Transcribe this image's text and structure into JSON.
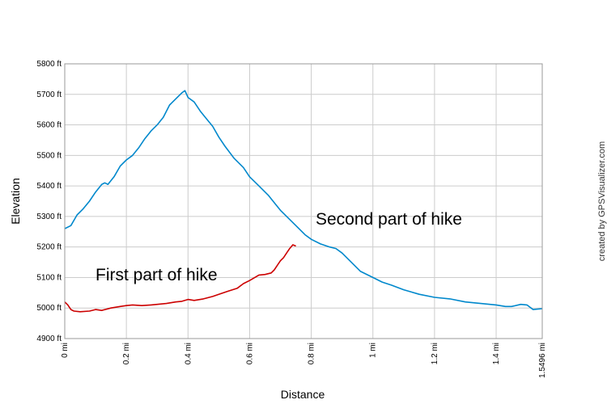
{
  "chart_data": {
    "type": "line",
    "xlabel": "Distance",
    "ylabel": "Elevation",
    "xlim": [
      0,
      1.5496
    ],
    "ylim": [
      4900,
      5800
    ],
    "x_ticks": [
      "0 mi",
      "0.2 mi",
      "0.4 mi",
      "0.6 mi",
      "0.8 mi",
      "1 mi",
      "1.2 mi",
      "1.4 mi",
      "1.5496 mi"
    ],
    "y_ticks": [
      "4900 ft",
      "5000 ft",
      "5100 ft",
      "5200 ft",
      "5300 ft",
      "5400 ft",
      "5500 ft",
      "5600 ft",
      "5700 ft",
      "5800 ft"
    ],
    "grid": true,
    "series": [
      {
        "color": "#cc0000",
        "x": [
          0,
          0.01,
          0.02,
          0.03,
          0.05,
          0.08,
          0.1,
          0.12,
          0.15,
          0.18,
          0.2,
          0.22,
          0.25,
          0.28,
          0.3,
          0.33,
          0.36,
          0.38,
          0.4,
          0.42,
          0.45,
          0.48,
          0.5,
          0.53,
          0.56,
          0.58,
          0.6,
          0.62,
          0.63,
          0.65,
          0.67,
          0.68,
          0.69,
          0.7,
          0.71,
          0.72,
          0.73,
          0.74,
          0.75
        ],
        "y": [
          5020,
          5010,
          4995,
          4990,
          4988,
          4990,
          4995,
          4992,
          5000,
          5005,
          5008,
          5010,
          5008,
          5010,
          5012,
          5015,
          5020,
          5022,
          5028,
          5025,
          5030,
          5038,
          5045,
          5055,
          5065,
          5080,
          5090,
          5102,
          5108,
          5110,
          5115,
          5125,
          5140,
          5155,
          5165,
          5180,
          5195,
          5207,
          5203
        ]
      },
      {
        "color": "#0088cc",
        "x": [
          0,
          0.02,
          0.04,
          0.06,
          0.08,
          0.1,
          0.12,
          0.13,
          0.14,
          0.16,
          0.18,
          0.2,
          0.22,
          0.24,
          0.26,
          0.28,
          0.3,
          0.32,
          0.34,
          0.36,
          0.38,
          0.39,
          0.4,
          0.42,
          0.44,
          0.46,
          0.48,
          0.5,
          0.52,
          0.55,
          0.58,
          0.6,
          0.63,
          0.66,
          0.7,
          0.74,
          0.78,
          0.8,
          0.83,
          0.86,
          0.88,
          0.9,
          0.93,
          0.96,
          1.0,
          1.03,
          1.06,
          1.1,
          1.15,
          1.2,
          1.25,
          1.3,
          1.35,
          1.4,
          1.43,
          1.45,
          1.48,
          1.5,
          1.52,
          1.5496
        ],
        "y": [
          5260,
          5270,
          5305,
          5325,
          5350,
          5380,
          5405,
          5410,
          5405,
          5430,
          5465,
          5485,
          5500,
          5525,
          5555,
          5580,
          5600,
          5625,
          5665,
          5685,
          5705,
          5712,
          5690,
          5675,
          5645,
          5620,
          5595,
          5560,
          5530,
          5490,
          5460,
          5430,
          5400,
          5370,
          5320,
          5280,
          5240,
          5225,
          5210,
          5200,
          5195,
          5180,
          5150,
          5120,
          5100,
          5085,
          5075,
          5060,
          5045,
          5035,
          5030,
          5020,
          5015,
          5010,
          5005,
          5005,
          5012,
          5010,
          4995,
          4998
        ]
      }
    ],
    "annotations": [
      "First part of hike",
      "Second part of hike"
    ]
  },
  "credit": "created by GPSVisualizer.com"
}
